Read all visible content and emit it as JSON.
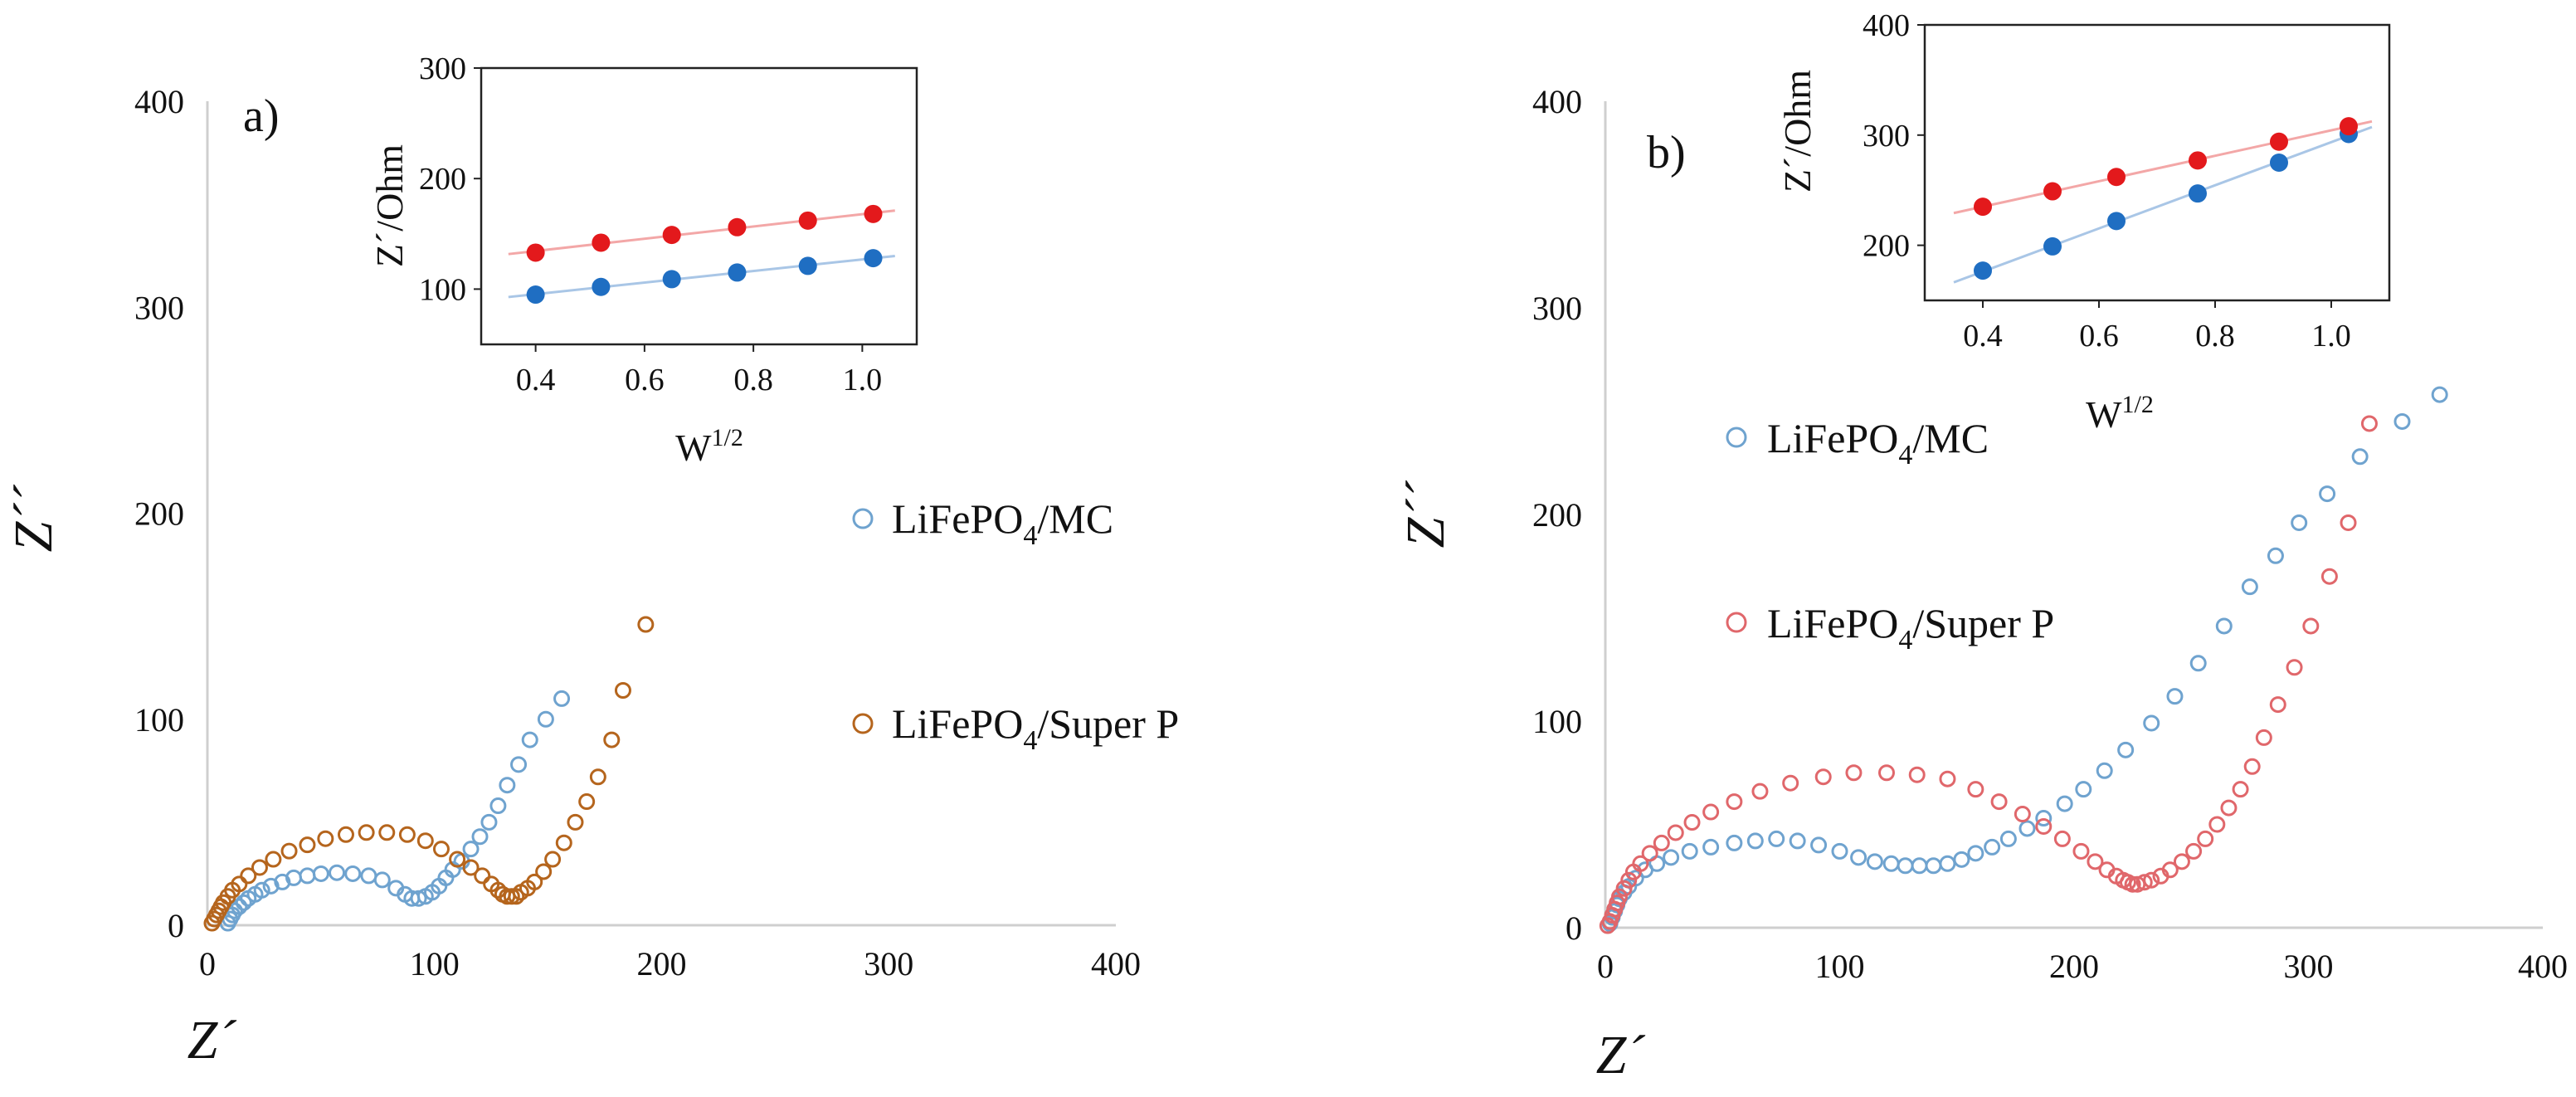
{
  "colors": {
    "mc_main": "#6fa3cf",
    "superp_a": "#b5651d",
    "superp_b": "#e0676b",
    "inset_mc": "#1f6ec2",
    "inset_superp": "#e3191c",
    "inset_mc_line": "#a9c6e6",
    "inset_superp_line": "#f3a7a7",
    "axis": "#cfcfcf",
    "inset_axis": "#222222"
  },
  "chart_data": [
    {
      "type": "scatter",
      "panel_label": "a)",
      "xlabel": "Z´",
      "ylabel": "Z´´",
      "xlim": [
        0,
        400
      ],
      "ylim": [
        0,
        400
      ],
      "xticks": [
        "0",
        "100",
        "200",
        "300",
        "400"
      ],
      "yticks": [
        "0",
        "100",
        "200",
        "300",
        "400"
      ],
      "legend": [
        {
          "label": "LiFePO",
          "sub": "4",
          "suffix": "/MC"
        },
        {
          "label": "LiFePO",
          "sub": "4",
          "suffix": "/Super P"
        }
      ],
      "series": [
        {
          "legend_index": 0,
          "x": [
            9,
            10,
            11,
            12,
            14,
            16,
            18,
            21,
            24,
            28,
            33,
            38,
            44,
            50,
            57,
            64,
            71,
            77,
            83,
            87,
            90,
            93,
            96,
            99,
            102,
            105,
            108,
            112,
            116,
            120,
            124,
            128,
            132,
            137,
            142,
            149,
            156
          ],
          "y": [
            1,
            3,
            5,
            7,
            9,
            11,
            13,
            15,
            17,
            19,
            21,
            23,
            24,
            25,
            25.5,
            25,
            24,
            22,
            18,
            15,
            13,
            13,
            14,
            16,
            19,
            23,
            27,
            31,
            37,
            43,
            50,
            58,
            68,
            78,
            90,
            100,
            110
          ]
        },
        {
          "legend_index": 1,
          "x": [
            2,
            3,
            4,
            5,
            6,
            7,
            9,
            11,
            14,
            18,
            23,
            29,
            36,
            44,
            52,
            61,
            70,
            79,
            88,
            96,
            103,
            110,
            116,
            121,
            125,
            128,
            130,
            132,
            134,
            136,
            138,
            141,
            144,
            148,
            152,
            157,
            162,
            167,
            172,
            178,
            183,
            193
          ],
          "y": [
            1,
            3,
            5,
            7,
            9,
            11,
            14,
            17,
            20,
            24,
            28,
            32,
            36,
            39,
            42,
            44,
            45,
            45,
            44,
            41,
            37,
            32,
            28,
            24,
            20,
            17,
            15,
            14,
            14,
            14,
            16,
            18,
            21,
            26,
            32,
            40,
            50,
            60,
            72,
            90,
            114,
            146
          ]
        }
      ],
      "inset": {
        "xlabel": "W",
        "xlabel_sup": "1/2",
        "ylabel": "Z´/Ohm",
        "xlim": [
          0.3,
          1.1
        ],
        "ylim": [
          50,
          300
        ],
        "xticks": [
          "0.4",
          "0.6",
          "0.8",
          "1.0"
        ],
        "yticks": [
          "100",
          "200",
          "300"
        ],
        "series": [
          {
            "x": [
              0.4,
              0.52,
              0.65,
              0.77,
              0.9,
              1.02
            ],
            "y": [
              95,
              102,
              109,
              115,
              121,
              128
            ]
          },
          {
            "x": [
              0.4,
              0.52,
              0.65,
              0.77,
              0.9,
              1.02
            ],
            "y": [
              133,
              142,
              149,
              156,
              162,
              168
            ]
          }
        ]
      }
    },
    {
      "type": "scatter",
      "panel_label": "b)",
      "xlabel": "Z´",
      "ylabel": "Z´´",
      "xlim": [
        0,
        400
      ],
      "ylim": [
        0,
        400
      ],
      "xticks": [
        "0",
        "100",
        "200",
        "300",
        "400"
      ],
      "yticks": [
        "0",
        "100",
        "200",
        "300",
        "400"
      ],
      "legend": [
        {
          "label": "LiFePO",
          "sub": "4",
          "suffix": "/MC"
        },
        {
          "label": "LiFePO",
          "sub": "4",
          "suffix": "/Super P"
        }
      ],
      "series": [
        {
          "legend_index": 0,
          "x": [
            2,
            3,
            4,
            5,
            6,
            8,
            10,
            13,
            17,
            22,
            28,
            36,
            45,
            55,
            64,
            73,
            82,
            91,
            100,
            108,
            115,
            122,
            128,
            134,
            140,
            146,
            152,
            158,
            165,
            172,
            180,
            187,
            196,
            204,
            213,
            222,
            233,
            243,
            253,
            264,
            275,
            286,
            296,
            308,
            322,
            340,
            356
          ],
          "y": [
            2,
            5,
            8,
            11,
            14,
            17,
            20,
            24,
            28,
            31,
            34,
            37,
            39,
            41,
            42,
            43,
            42,
            40,
            37,
            34,
            32,
            31,
            30,
            30,
            30,
            31,
            33,
            36,
            39,
            43,
            48,
            53,
            60,
            67,
            76,
            86,
            99,
            112,
            128,
            146,
            165,
            180,
            196,
            210,
            228,
            245,
            258
          ]
        },
        {
          "legend_index": 1,
          "x": [
            1,
            2,
            3,
            4,
            5,
            6,
            8,
            10,
            12,
            15,
            19,
            24,
            30,
            37,
            45,
            55,
            66,
            79,
            93,
            106,
            120,
            133,
            146,
            158,
            168,
            178,
            187,
            195,
            203,
            209,
            214,
            218,
            221,
            223,
            225,
            227,
            230,
            233,
            237,
            241,
            246,
            251,
            256,
            261,
            266,
            271,
            276,
            281,
            287,
            294,
            301,
            309,
            317,
            326
          ],
          "y": [
            1,
            3,
            6,
            9,
            12,
            15,
            19,
            23,
            27,
            31,
            36,
            41,
            46,
            51,
            56,
            61,
            66,
            70,
            73,
            75,
            75,
            74,
            72,
            67,
            61,
            55,
            49,
            43,
            37,
            32,
            28,
            25,
            23,
            22,
            21,
            21,
            22,
            23,
            25,
            28,
            32,
            37,
            43,
            50,
            58,
            67,
            78,
            92,
            108,
            126,
            146,
            170,
            196,
            244
          ]
        }
      ],
      "inset": {
        "xlabel": "W",
        "xlabel_sup": "1/2",
        "ylabel": "Z´/Ohm",
        "xlim": [
          0.3,
          1.1
        ],
        "ylim": [
          150,
          400
        ],
        "xticks": [
          "0.4",
          "0.6",
          "0.8",
          "1.0"
        ],
        "yticks": [
          "200",
          "300",
          "400"
        ],
        "series": [
          {
            "x": [
              0.4,
              0.52,
              0.63,
              0.77,
              0.91,
              1.03
            ],
            "y": [
              177,
              199,
              222,
              247,
              275,
              301
            ]
          },
          {
            "x": [
              0.4,
              0.52,
              0.63,
              0.77,
              0.91,
              1.03
            ],
            "y": [
              235,
              249,
              262,
              277,
              294,
              308
            ]
          }
        ]
      }
    }
  ]
}
